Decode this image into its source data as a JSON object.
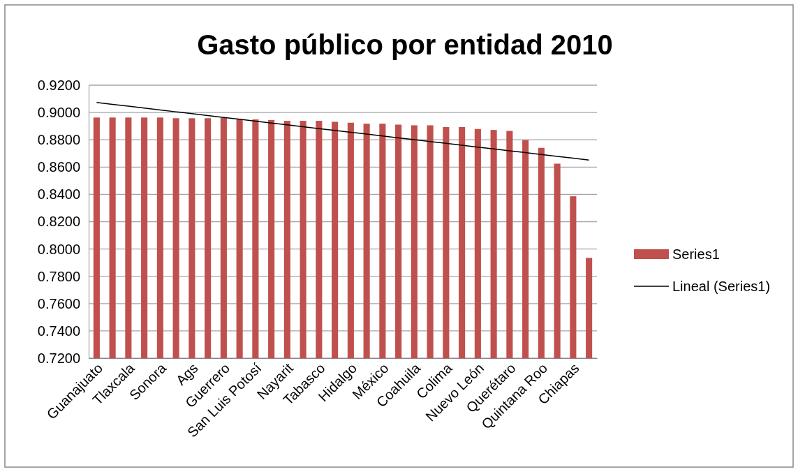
{
  "chart_data": {
    "type": "bar",
    "title": "Gasto público por entidad 2010",
    "categories": [
      "Guanajuato",
      null,
      "Tlaxcala",
      null,
      "Sonora",
      null,
      "Ags",
      null,
      "Guerrero",
      null,
      "San Luis Potosí",
      null,
      "Nayarit",
      null,
      "Tabasco",
      null,
      "Hidalgo",
      null,
      "México",
      null,
      "Coahuila",
      null,
      "Colima",
      null,
      "Nuevo León",
      null,
      "Querétaro",
      null,
      "Quintana Roo",
      null,
      "Chiapas",
      null
    ],
    "series": [
      {
        "name": "Series1",
        "color": "#c0504d",
        "values": [
          0.8963,
          0.8963,
          0.8963,
          0.8963,
          0.8963,
          0.8958,
          0.8958,
          0.8958,
          0.896,
          0.8949,
          0.8949,
          0.8945,
          0.8939,
          0.8939,
          0.8939,
          0.8932,
          0.8925,
          0.8918,
          0.8918,
          0.8911,
          0.8906,
          0.8906,
          0.8893,
          0.8893,
          0.8879,
          0.8872,
          0.8865,
          0.8798,
          0.8741,
          0.8625,
          0.8386,
          0.7935
        ]
      },
      {
        "name": "Lineal (Series1)",
        "type": "line",
        "color": "#000000",
        "values": [
          0.9073,
          0.9059,
          0.9046,
          0.9032,
          0.9019,
          0.9005,
          0.8991,
          0.8978,
          0.8964,
          0.8951,
          0.8937,
          0.8923,
          0.891,
          0.8896,
          0.8882,
          0.8869,
          0.8855,
          0.8842,
          0.8828,
          0.8814,
          0.8801,
          0.8787,
          0.8774,
          0.876,
          0.8746,
          0.8733,
          0.8719,
          0.8706,
          0.8692,
          0.8678,
          0.8665,
          0.8651
        ]
      }
    ],
    "ylim": [
      0.72,
      0.92
    ],
    "yticks": [
      {
        "value": 0.72,
        "label": "0.7200"
      },
      {
        "value": 0.74,
        "label": "0.7400"
      },
      {
        "value": 0.76,
        "label": "0.7600"
      },
      {
        "value": 0.78,
        "label": "0.7800"
      },
      {
        "value": 0.8,
        "label": "0.8000"
      },
      {
        "value": 0.82,
        "label": "0.8200"
      },
      {
        "value": 0.84,
        "label": "0.8400"
      },
      {
        "value": 0.86,
        "label": "0.8600"
      },
      {
        "value": 0.88,
        "label": "0.8800"
      },
      {
        "value": 0.9,
        "label": "0.9000"
      },
      {
        "value": 0.92,
        "label": "0.9200"
      }
    ],
    "grid": "y",
    "legend": "right"
  }
}
